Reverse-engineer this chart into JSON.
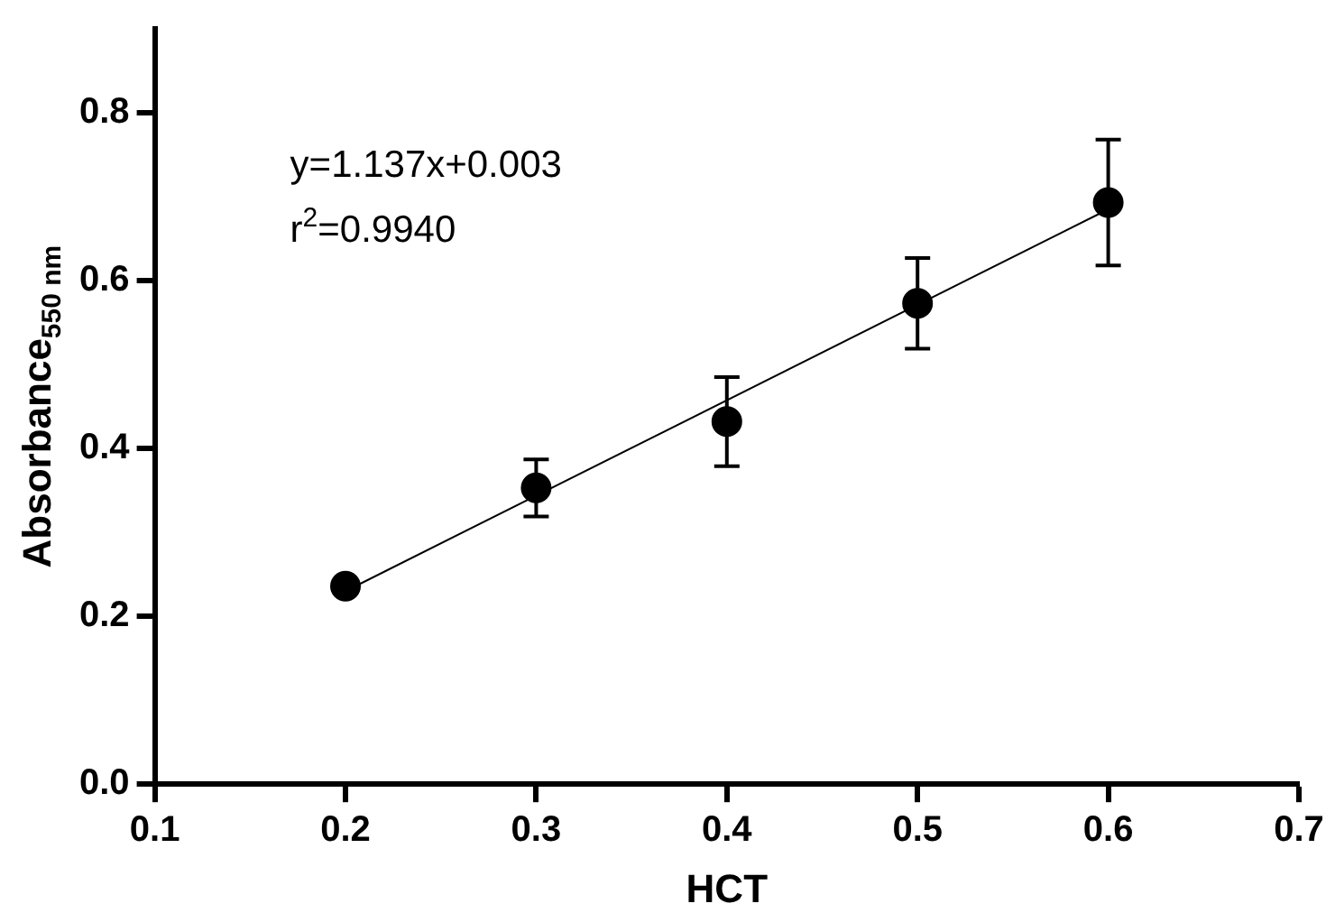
{
  "chart_data": {
    "type": "scatter",
    "xlabel": "HCT",
    "ylabel": "Absorbance$_{550 nm}$",
    "xlim": [
      0.1,
      0.7
    ],
    "xticks": [
      0.1,
      0.2,
      0.3,
      0.4,
      0.5,
      0.6,
      0.7
    ],
    "ylim": [
      0,
      0.9
    ],
    "yticks": [
      {
        "value": 0,
        "label": "0.0"
      },
      0.2,
      0.4,
      0.6,
      0.8
    ],
    "grid": false,
    "marker": "circle",
    "series": [
      {
        "color": "#000000",
        "x": [
          0.2,
          0.3,
          0.4,
          0.5,
          0.6
        ],
        "values": [
          0.236,
          0.353,
          0.432,
          0.573,
          0.693
        ],
        "errors": [
          null,
          0.034,
          0.053,
          0.054,
          0.075
        ]
      },
      {
        "type": "line",
        "color": "#000000",
        "x": [
          0.2,
          0.6
        ],
        "values": [
          0.23,
          0.685
        ],
        "marker": "none",
        "line_style": "solid"
      }
    ],
    "annotations": [
      "y=1.137x+0.003",
      "r$^{2}$=0.9940"
    ]
  }
}
